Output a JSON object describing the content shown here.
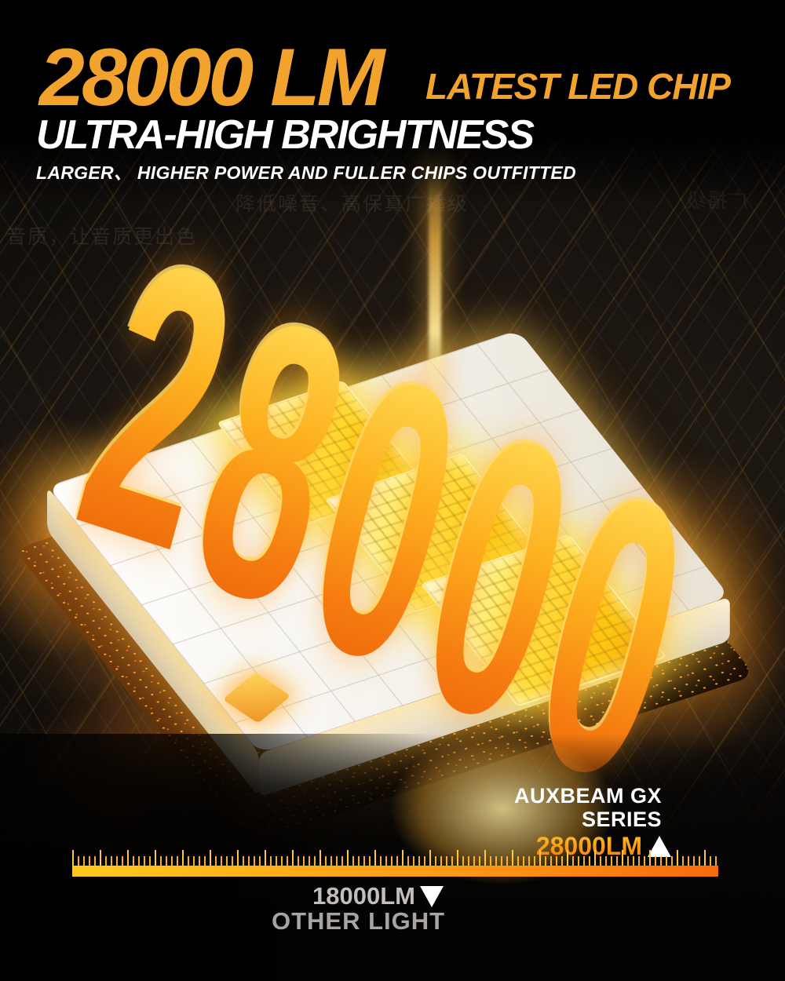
{
  "header": {
    "headline_value": "28000 LM",
    "headline_side": "LATEST LED CHIP",
    "title": "ULTRA-HIGH BRIGHTNESS",
    "subtitle": "LARGER、 HIGHER POWER AND FULLER CHIPS OUTFITTED"
  },
  "hero": {
    "value": "28000",
    "digits": [
      "2",
      "8",
      "0",
      "0",
      "0"
    ]
  },
  "watermarks": {
    "line1": "降低噪音、高保真广播级",
    "line2": "音质，让音质更出色",
    "right_fragment": "广播级"
  },
  "comparison": {
    "brand_line1": "AUXBEAM GX",
    "brand_line2": "SERIES",
    "brand_value": "28000LM",
    "other_value": "18000LM",
    "other_label": "OTHER LIGHT"
  },
  "icons": {
    "up": "triangle-up-icon",
    "down": "triangle-down-icon"
  },
  "colors": {
    "accent_orange": "#F1A32D",
    "value_orange_top": "#FFC524",
    "value_orange_bottom": "#F2770E",
    "ruler_yellow": "#FFC91F",
    "ruler_orange": "#F76A0C",
    "white": "#FFFFFF",
    "muted_gray": "#A8A4A1"
  }
}
